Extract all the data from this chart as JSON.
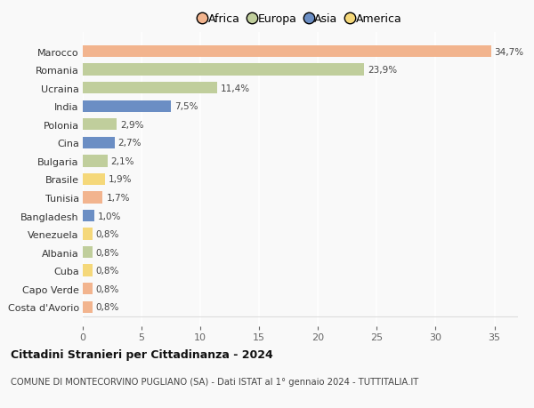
{
  "countries": [
    "Costa d'Avorio",
    "Capo Verde",
    "Cuba",
    "Albania",
    "Venezuela",
    "Bangladesh",
    "Tunisia",
    "Brasile",
    "Bulgaria",
    "Cina",
    "Polonia",
    "India",
    "Ucraina",
    "Romania",
    "Marocco"
  ],
  "values": [
    0.8,
    0.8,
    0.8,
    0.8,
    0.8,
    1.0,
    1.7,
    1.9,
    2.1,
    2.7,
    2.9,
    7.5,
    11.4,
    23.9,
    34.7
  ],
  "labels": [
    "0,8%",
    "0,8%",
    "0,8%",
    "0,8%",
    "0,8%",
    "1,0%",
    "1,7%",
    "1,9%",
    "2,1%",
    "2,7%",
    "2,9%",
    "7,5%",
    "11,4%",
    "23,9%",
    "34,7%"
  ],
  "continents": [
    "Africa",
    "Africa",
    "America",
    "Europa",
    "America",
    "Asia",
    "Africa",
    "America",
    "Europa",
    "Asia",
    "Europa",
    "Asia",
    "Europa",
    "Europa",
    "Africa"
  ],
  "colors": {
    "Africa": "#F2B48E",
    "Europa": "#C0CE9C",
    "Asia": "#6B8EC4",
    "America": "#F5D87A"
  },
  "xlim": [
    0,
    37
  ],
  "xticks": [
    0,
    5,
    10,
    15,
    20,
    25,
    30,
    35
  ],
  "title": "Cittadini Stranieri per Cittadinanza - 2024",
  "subtitle": "COMUNE DI MONTECORVINO PUGLIANO (SA) - Dati ISTAT al 1° gennaio 2024 - TUTTITALIA.IT",
  "bg_color": "#f9f9f9",
  "bar_height": 0.65,
  "legend_order": [
    "Africa",
    "Europa",
    "Asia",
    "America"
  ]
}
